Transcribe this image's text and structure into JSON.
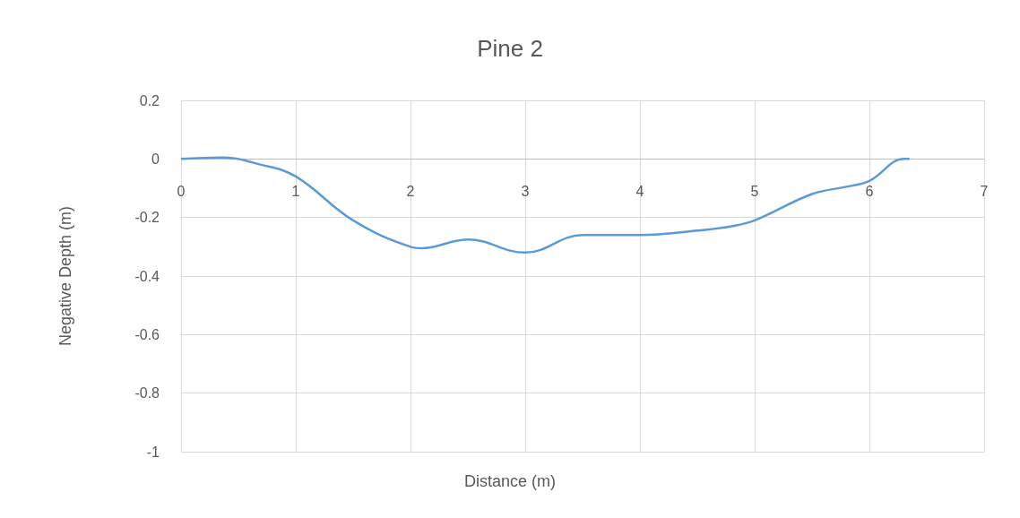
{
  "chart_data": {
    "type": "line",
    "title": "Pine 2",
    "xlabel": "Distance (m)",
    "ylabel": "Negative Depth (m)",
    "series": [
      {
        "color": "#5b9bd5",
        "x": [
          0,
          0.35,
          0.7,
          1,
          1.5,
          2,
          2.1,
          2.5,
          3,
          3.5,
          4,
          4.5,
          4.8,
          5,
          5.5,
          5.8,
          6,
          6.3,
          6.35
        ],
        "values": [
          0,
          0.005,
          -0.02,
          -0.06,
          -0.21,
          -0.3,
          -0.305,
          -0.275,
          -0.32,
          -0.26,
          -0.26,
          -0.245,
          -0.23,
          -0.21,
          -0.12,
          -0.095,
          -0.075,
          0,
          0
        ]
      }
    ],
    "xlim": [
      0,
      7
    ],
    "xticks": [
      0,
      1,
      2,
      3,
      4,
      5,
      6,
      7
    ],
    "ylim": [
      -1,
      0.2
    ],
    "yticks": [
      -1,
      -0.8,
      -0.6,
      -0.4,
      -0.2,
      0,
      0.2
    ],
    "grid": true,
    "marker": "none",
    "line_style": "solid"
  }
}
